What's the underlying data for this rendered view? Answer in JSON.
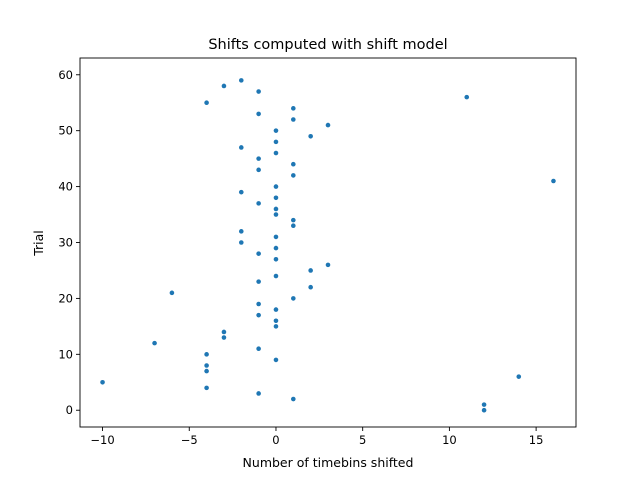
{
  "chart_data": {
    "type": "scatter",
    "title": "Shifts computed with shift model",
    "xlabel": "Number of timebins shifted",
    "ylabel": "Trial",
    "xlim": [
      -11.3,
      17.3
    ],
    "ylim": [
      -3,
      63
    ],
    "xticks": [
      -10,
      -5,
      0,
      5,
      10,
      15
    ],
    "yticks": [
      0,
      10,
      20,
      30,
      40,
      50,
      60
    ],
    "grid": false,
    "marker_color": "#1f77b4",
    "points": [
      {
        "x": 12,
        "y": 0
      },
      {
        "x": 12,
        "y": 1
      },
      {
        "x": 1,
        "y": 2
      },
      {
        "x": -1,
        "y": 3
      },
      {
        "x": -4,
        "y": 4
      },
      {
        "x": -10,
        "y": 5
      },
      {
        "x": 14,
        "y": 6
      },
      {
        "x": -4,
        "y": 7
      },
      {
        "x": -4,
        "y": 8
      },
      {
        "x": 0,
        "y": 9
      },
      {
        "x": -4,
        "y": 10
      },
      {
        "x": -1,
        "y": 11
      },
      {
        "x": -7,
        "y": 12
      },
      {
        "x": -3,
        "y": 13
      },
      {
        "x": -3,
        "y": 14
      },
      {
        "x": 0,
        "y": 15
      },
      {
        "x": 0,
        "y": 16
      },
      {
        "x": -1,
        "y": 17
      },
      {
        "x": 0,
        "y": 18
      },
      {
        "x": -1,
        "y": 19
      },
      {
        "x": 1,
        "y": 20
      },
      {
        "x": -6,
        "y": 21
      },
      {
        "x": 2,
        "y": 22
      },
      {
        "x": -1,
        "y": 23
      },
      {
        "x": 0,
        "y": 24
      },
      {
        "x": 2,
        "y": 25
      },
      {
        "x": 3,
        "y": 26
      },
      {
        "x": 0,
        "y": 27
      },
      {
        "x": -1,
        "y": 28
      },
      {
        "x": 0,
        "y": 29
      },
      {
        "x": -2,
        "y": 30
      },
      {
        "x": 0,
        "y": 31
      },
      {
        "x": -2,
        "y": 32
      },
      {
        "x": 1,
        "y": 33
      },
      {
        "x": 1,
        "y": 34
      },
      {
        "x": 0,
        "y": 35
      },
      {
        "x": 0,
        "y": 36
      },
      {
        "x": -1,
        "y": 37
      },
      {
        "x": 0,
        "y": 38
      },
      {
        "x": -2,
        "y": 39
      },
      {
        "x": 0,
        "y": 40
      },
      {
        "x": 16,
        "y": 41
      },
      {
        "x": 1,
        "y": 42
      },
      {
        "x": -1,
        "y": 43
      },
      {
        "x": 1,
        "y": 44
      },
      {
        "x": -1,
        "y": 45
      },
      {
        "x": 0,
        "y": 46
      },
      {
        "x": -2,
        "y": 47
      },
      {
        "x": 0,
        "y": 48
      },
      {
        "x": 2,
        "y": 49
      },
      {
        "x": 0,
        "y": 50
      },
      {
        "x": 3,
        "y": 51
      },
      {
        "x": 1,
        "y": 52
      },
      {
        "x": -1,
        "y": 53
      },
      {
        "x": 1,
        "y": 54
      },
      {
        "x": -4,
        "y": 55
      },
      {
        "x": 11,
        "y": 56
      },
      {
        "x": -1,
        "y": 57
      },
      {
        "x": -3,
        "y": 58
      },
      {
        "x": -2,
        "y": 59
      }
    ]
  }
}
